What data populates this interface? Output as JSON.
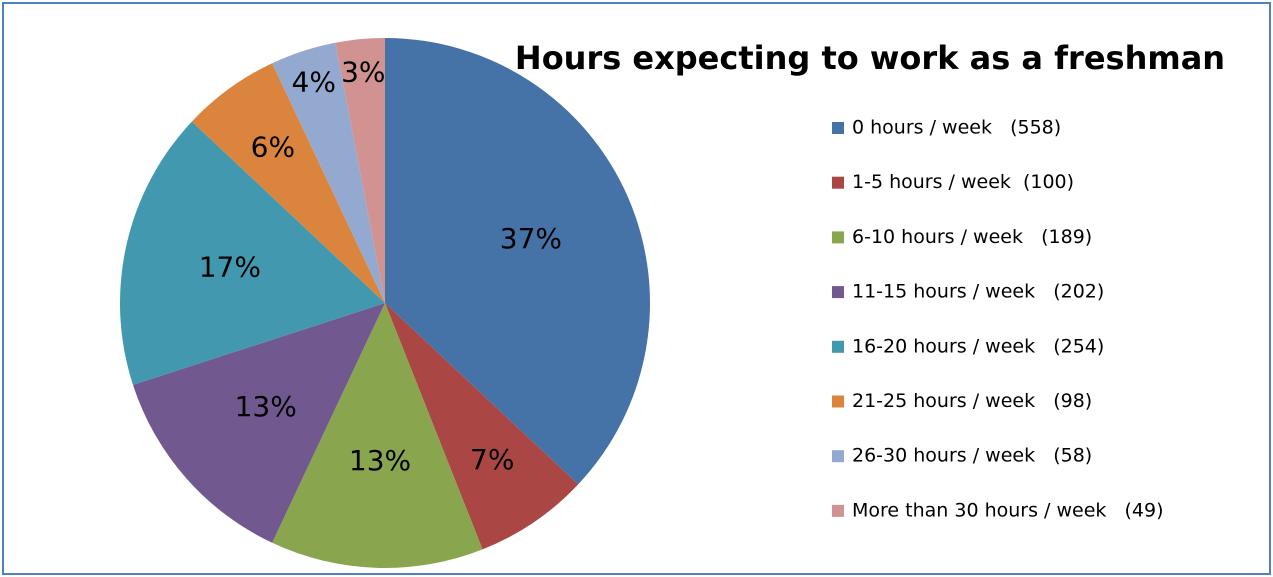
{
  "chart_data": {
    "type": "pie",
    "title": "Hours expecting to work as a freshman",
    "categories": [
      "0 hours / week   (558)",
      "1-5 hours / week  (100)",
      "6-10 hours / week   (189)",
      "11-15 hours / week   (202)",
      "16-20 hours / week   (254)",
      "21-25 hours / week   (98)",
      "26-30 hours / week   (58)",
      "More than 30 hours / week   (49)"
    ],
    "values": [
      37,
      7,
      13,
      13,
      17,
      6,
      4,
      3
    ],
    "value_labels": [
      "37%",
      "7%",
      "13%",
      "13%",
      "17%",
      "6%",
      "4%",
      "3%"
    ],
    "colors": [
      "#4572a7",
      "#aa4643",
      "#89a54e",
      "#71588f",
      "#4198af",
      "#db843d",
      "#93a9cf",
      "#d19392"
    ],
    "legend": "right"
  }
}
